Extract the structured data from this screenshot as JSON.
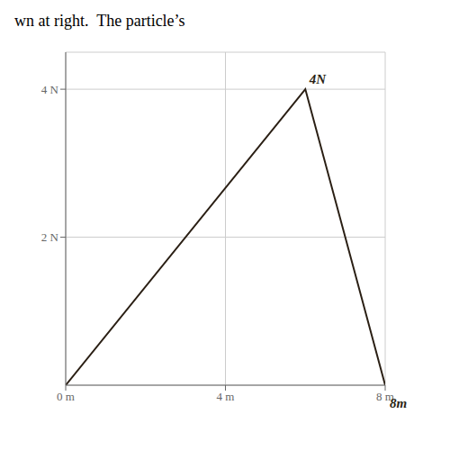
{
  "chart_data": {
    "type": "line",
    "title": "wn at right.  The particle’s",
    "x": [
      0,
      6,
      8
    ],
    "values": [
      0,
      4,
      0
    ],
    "color": "#2a1f14",
    "xlim": [
      0,
      8
    ],
    "ylim": [
      0,
      4.5
    ],
    "xticks": [
      {
        "value": 0,
        "label": "0 m"
      },
      {
        "value": 4,
        "label": "4 m"
      },
      {
        "value": 8,
        "label": "8 m"
      }
    ],
    "yticks": [
      {
        "value": 2,
        "label": "2 N"
      },
      {
        "value": 4,
        "label": "4 N"
      }
    ],
    "grid": true,
    "annotations": [
      {
        "text": "4N",
        "x": 6.1,
        "y": 4.05
      },
      {
        "text": "8m"
      }
    ]
  }
}
